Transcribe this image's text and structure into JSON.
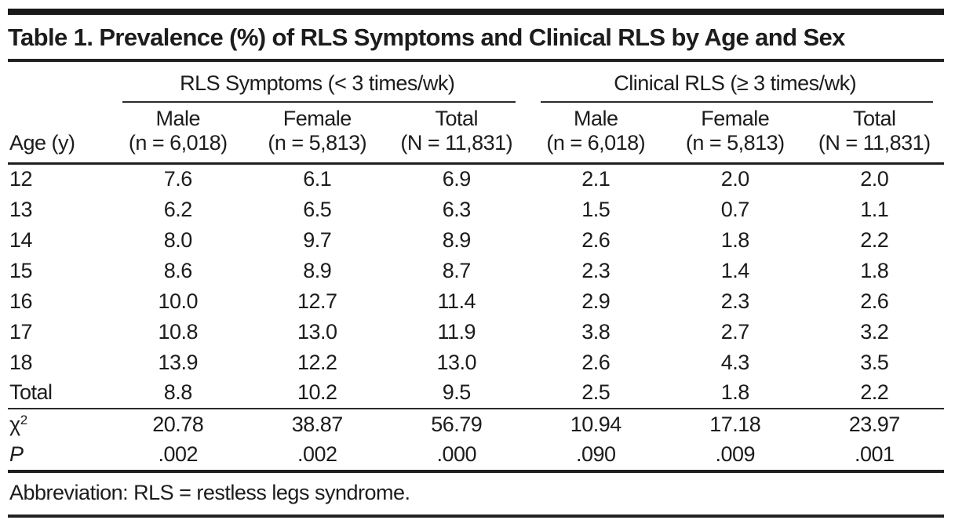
{
  "colors": {
    "text": "#1c1c1c",
    "rule": "#222222",
    "background": "#ffffff"
  },
  "title": "Table 1. Prevalence (%) of RLS Symptoms and Clinical RLS by Age and Sex",
  "table": {
    "row_header": "Age (y)",
    "groups": [
      {
        "label": "RLS Symptoms (< 3 times/wk)"
      },
      {
        "label": "Clinical RLS (≥ 3 times/wk)"
      }
    ],
    "columns": [
      {
        "label": "Male",
        "sub": "(n = 6,018)"
      },
      {
        "label": "Female",
        "sub": "(n = 5,813)"
      },
      {
        "label": "Total",
        "sub": "(N = 11,831)"
      },
      {
        "label": "Male",
        "sub": "(n = 6,018)"
      },
      {
        "label": "Female",
        "sub": "(n = 5,813)"
      },
      {
        "label": "Total",
        "sub": "(N = 11,831)"
      }
    ],
    "rows": [
      {
        "label": "12",
        "values": [
          "7.6",
          "6.1",
          "6.9",
          "2.1",
          "2.0",
          "2.0"
        ]
      },
      {
        "label": "13",
        "values": [
          "6.2",
          "6.5",
          "6.3",
          "1.5",
          "0.7",
          "1.1"
        ]
      },
      {
        "label": "14",
        "values": [
          "8.0",
          "9.7",
          "8.9",
          "2.6",
          "1.8",
          "2.2"
        ]
      },
      {
        "label": "15",
        "values": [
          "8.6",
          "8.9",
          "8.7",
          "2.3",
          "1.4",
          "1.8"
        ]
      },
      {
        "label": "16",
        "values": [
          "10.0",
          "12.7",
          "11.4",
          "2.9",
          "2.3",
          "2.6"
        ]
      },
      {
        "label": "17",
        "values": [
          "10.8",
          "13.0",
          "11.9",
          "3.8",
          "2.7",
          "3.2"
        ]
      },
      {
        "label": "18",
        "values": [
          "13.9",
          "12.2",
          "13.0",
          "2.6",
          "4.3",
          "3.5"
        ]
      },
      {
        "label": "Total",
        "values": [
          "8.8",
          "10.2",
          "9.5",
          "2.5",
          "1.8",
          "2.2"
        ]
      }
    ],
    "stats": [
      {
        "label": "χ",
        "label_sup": "2",
        "values": [
          "20.78",
          "38.87",
          "56.79",
          "10.94",
          "17.18",
          "23.97"
        ]
      },
      {
        "label": "P",
        "label_sup": "",
        "values": [
          ".002",
          ".002",
          ".000",
          ".090",
          ".009",
          ".001"
        ]
      }
    ]
  },
  "footnote": "Abbreviation: RLS = restless legs syndrome."
}
